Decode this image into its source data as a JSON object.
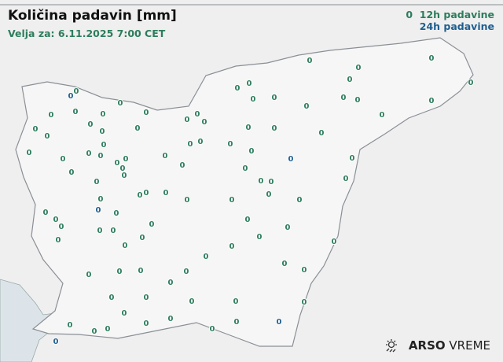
{
  "header": {
    "title": "Količina padavin [mm]",
    "valid": "Velja za: 6.11.2025 7:00 CET"
  },
  "legend": {
    "sample_value": "0",
    "label_12h": "12h padavine",
    "label_24h": "24h padavine",
    "color_12h": "#2d7d5c",
    "color_24h": "#1f5f8f"
  },
  "logo": {
    "brand": "ARSO",
    "suffix": "VREME",
    "icon": "sun-rain-icon"
  },
  "stations_12h": [
    "0",
    "0",
    "0",
    "0",
    "0",
    "0",
    "0",
    "0",
    "0",
    "0",
    "0",
    "0",
    "0",
    "0",
    "0",
    "0",
    "0",
    "0",
    "0",
    "0",
    "0",
    "0",
    "0",
    "0",
    "0",
    "0",
    "0",
    "0",
    "0",
    "0",
    "0",
    "0",
    "0",
    "0",
    "0",
    "0",
    "0",
    "0",
    "0",
    "0",
    "0",
    "0",
    "0",
    "0",
    "0",
    "0",
    "0",
    "0",
    "0",
    "0",
    "0",
    "0",
    "0",
    "0",
    "0",
    "0",
    "0",
    "0",
    "0",
    "0",
    "0",
    "0",
    "0",
    "0",
    "0",
    "0",
    "0",
    "0",
    "0",
    "0",
    "0",
    "0",
    "0",
    "0",
    "0",
    "0",
    "0",
    "0",
    "0",
    "0",
    "0",
    "0",
    "0",
    "0",
    "0",
    "0",
    "0",
    "0",
    "0",
    "0",
    "0",
    "0",
    "0",
    "0",
    "0",
    "0",
    "0",
    "0"
  ],
  "stations_24h": [
    "0",
    "0",
    "0",
    "0",
    "0"
  ]
}
